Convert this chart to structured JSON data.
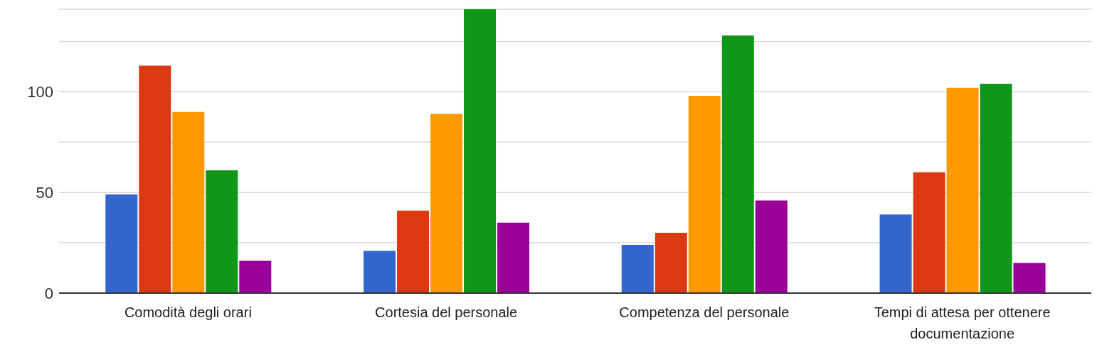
{
  "chart_data": {
    "type": "bar",
    "categories": [
      "Comodità degli orari",
      "Cortesia del personale",
      "Competenza del personale",
      "Tempi di attesa per ottenere documentazione"
    ],
    "series": [
      {
        "color": "#3366cc",
        "values": [
          49,
          21,
          24,
          39
        ]
      },
      {
        "color": "#dc3912",
        "values": [
          113,
          41,
          30,
          60
        ]
      },
      {
        "color": "#ff9900",
        "values": [
          90,
          89,
          98,
          102
        ]
      },
      {
        "color": "#109618",
        "values": [
          61,
          141,
          128,
          104
        ]
      },
      {
        "color": "#990099",
        "values": [
          16,
          35,
          46,
          15
        ]
      }
    ],
    "ylim": [
      0,
      141
    ],
    "yticks": [
      0,
      {
        "value": 25,
        "label": null
      },
      50,
      {
        "value": 75,
        "label": null
      },
      100,
      {
        "value": 125,
        "label": null
      }
    ],
    "grid": "y",
    "legend": false
  }
}
